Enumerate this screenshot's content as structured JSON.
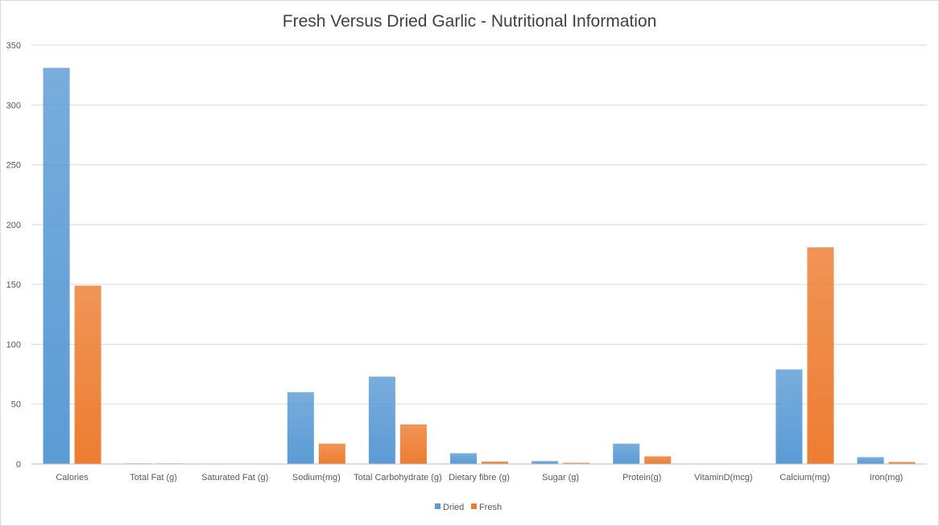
{
  "chart_data": {
    "type": "bar",
    "title": "Fresh Versus Dried Garlic - Nutritional Information",
    "xlabel": "",
    "ylabel": "",
    "ylim": [
      0,
      350
    ],
    "yticks": [
      0,
      50,
      100,
      150,
      200,
      250,
      300,
      350
    ],
    "grid": true,
    "legend_position": "bottom",
    "categories": [
      "Calories",
      "Total Fat (g)",
      "Saturated Fat (g)",
      "Sodium(mg)",
      "Total Carbohydrate (g)",
      "Dietary fibre (g)",
      "Sugar (g)",
      "Protein(g)",
      "VitaminD(mcg)",
      "Calcium(mg)",
      "Iron(mg)"
    ],
    "series": [
      {
        "name": "Dried",
        "color": "#5b9bd5",
        "values": [
          331,
          0.5,
          0.1,
          60,
          73,
          9,
          2.4,
          17,
          0,
          79,
          5.7
        ]
      },
      {
        "name": "Fresh",
        "color": "#ed7d31",
        "values": [
          149,
          0.5,
          0.1,
          17,
          33,
          2,
          1,
          6.4,
          0,
          181,
          1.7
        ]
      }
    ]
  }
}
